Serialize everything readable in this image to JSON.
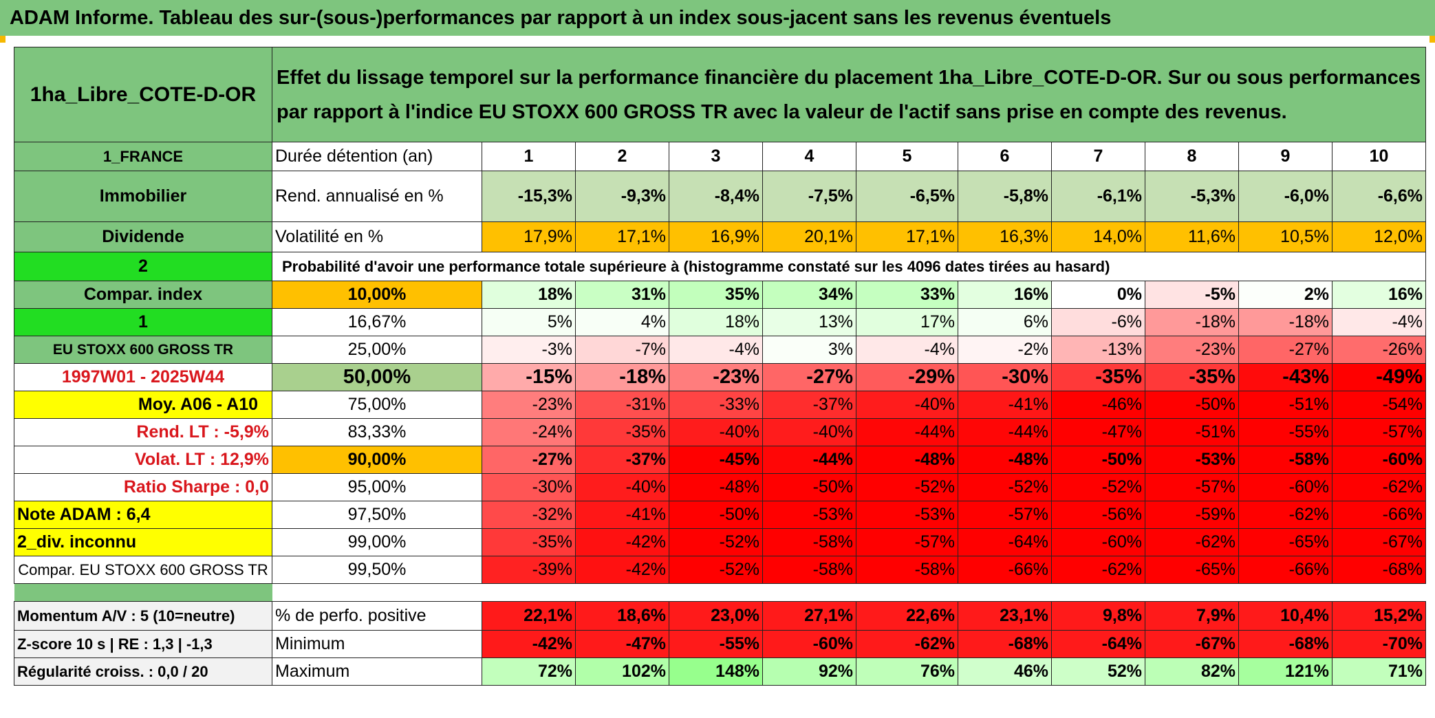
{
  "banner": "ADAM Informe. Tableau des sur-(sous-)performances par rapport à un index sous-jacent sans les revenus éventuels",
  "colors": {
    "banner_green": "#7ec57e",
    "bright_green": "#22dd22",
    "yellow": "#ffff00",
    "orange": "#ffc000",
    "red_text": "#d9161c"
  },
  "left": {
    "fund_name": "1ha_Libre_COTE-D-OR",
    "country": "1_FRANCE",
    "asset_class": "Immobilier",
    "income_type": "Dividende",
    "input_a": "2",
    "compar_index": "Compar. index",
    "input_b": "1",
    "index_name": "EU STOXX 600 GROSS TR",
    "period": "1997W01 - 2025W44",
    "moy": "Moy. A06 - A10",
    "rend_lt": "Rend. LT :    -5,9%",
    "volat_lt": "Volat. LT :    12,9%",
    "sharpe": "Ratio Sharpe :    0,0",
    "note": "Note ADAM : 6,4",
    "div": "2_div. inconnu",
    "compar_full": "Compar. EU STOXX 600 GROSS TR",
    "momentum": "Momentum A/V : 5 (10=neutre)",
    "zscore": "Z-score 10 s | RE : 1,3 | -1,3",
    "regularite": "Régularité croiss. : 0,0 / 20"
  },
  "header_text": "Effet du lissage temporel sur la performance financière du placement 1ha_Libre_COTE-D-OR. Sur ou sous performances par rapport à l'indice EU STOXX 600 GROSS TR avec la valeur de l'actif sans prise en compte des revenus.",
  "labels": {
    "duree": "Durée détention (an)",
    "rend": "Rend. annualisé en %",
    "vol": "Volatilité en %",
    "proba": "Probabilité d'avoir une performance totale supérieure à (histogramme constaté sur les 4096 dates tirées au hasard)",
    "perfo_pos": "% de perfo. positive",
    "minimum": "Minimum",
    "maximum": "Maximum"
  },
  "years": [
    "1",
    "2",
    "3",
    "4",
    "5",
    "6",
    "7",
    "8",
    "9",
    "10"
  ],
  "rend": [
    "-15,3%",
    "-9,3%",
    "-8,4%",
    "-7,5%",
    "-6,5%",
    "-5,8%",
    "-6,1%",
    "-5,3%",
    "-6,0%",
    "-6,6%"
  ],
  "vol": [
    "17,9%",
    "17,1%",
    "16,9%",
    "20,1%",
    "17,1%",
    "16,3%",
    "14,0%",
    "11,6%",
    "10,5%",
    "12,0%"
  ],
  "proba_rows": [
    {
      "pct": "10,00%",
      "values": [
        "18%",
        "31%",
        "35%",
        "34%",
        "33%",
        "16%",
        "0%",
        "-5%",
        "2%",
        "16%"
      ]
    },
    {
      "pct": "16,67%",
      "values": [
        "5%",
        "4%",
        "18%",
        "13%",
        "17%",
        "6%",
        "-6%",
        "-18%",
        "-18%",
        "-4%"
      ]
    },
    {
      "pct": "25,00%",
      "values": [
        "-3%",
        "-7%",
        "-4%",
        "3%",
        "-4%",
        "-2%",
        "-13%",
        "-23%",
        "-27%",
        "-26%"
      ]
    },
    {
      "pct": "50,00%",
      "values": [
        "-15%",
        "-18%",
        "-23%",
        "-27%",
        "-29%",
        "-30%",
        "-35%",
        "-35%",
        "-43%",
        "-49%"
      ]
    },
    {
      "pct": "75,00%",
      "values": [
        "-23%",
        "-31%",
        "-33%",
        "-37%",
        "-40%",
        "-41%",
        "-46%",
        "-50%",
        "-51%",
        "-54%"
      ]
    },
    {
      "pct": "83,33%",
      "values": [
        "-24%",
        "-35%",
        "-40%",
        "-40%",
        "-44%",
        "-44%",
        "-47%",
        "-51%",
        "-55%",
        "-57%"
      ]
    },
    {
      "pct": "90,00%",
      "values": [
        "-27%",
        "-37%",
        "-45%",
        "-44%",
        "-48%",
        "-48%",
        "-50%",
        "-53%",
        "-58%",
        "-60%"
      ]
    },
    {
      "pct": "95,00%",
      "values": [
        "-30%",
        "-40%",
        "-48%",
        "-50%",
        "-52%",
        "-52%",
        "-52%",
        "-57%",
        "-60%",
        "-62%"
      ]
    },
    {
      "pct": "97,50%",
      "values": [
        "-32%",
        "-41%",
        "-50%",
        "-53%",
        "-53%",
        "-57%",
        "-56%",
        "-59%",
        "-62%",
        "-66%"
      ]
    },
    {
      "pct": "99,00%",
      "values": [
        "-35%",
        "-42%",
        "-52%",
        "-58%",
        "-57%",
        "-64%",
        "-60%",
        "-62%",
        "-65%",
        "-67%"
      ]
    },
    {
      "pct": "99,50%",
      "values": [
        "-39%",
        "-42%",
        "-52%",
        "-58%",
        "-58%",
        "-66%",
        "-62%",
        "-65%",
        "-66%",
        "-68%"
      ]
    }
  ],
  "perfo_pos": [
    "22,1%",
    "18,6%",
    "23,0%",
    "27,1%",
    "22,6%",
    "23,1%",
    "9,8%",
    "7,9%",
    "10,4%",
    "15,2%"
  ],
  "minimum": [
    "-42%",
    "-47%",
    "-55%",
    "-60%",
    "-62%",
    "-68%",
    "-64%",
    "-67%",
    "-68%",
    "-70%"
  ],
  "maximum": [
    "72%",
    "102%",
    "148%",
    "92%",
    "76%",
    "46%",
    "52%",
    "82%",
    "121%",
    "71%"
  ]
}
